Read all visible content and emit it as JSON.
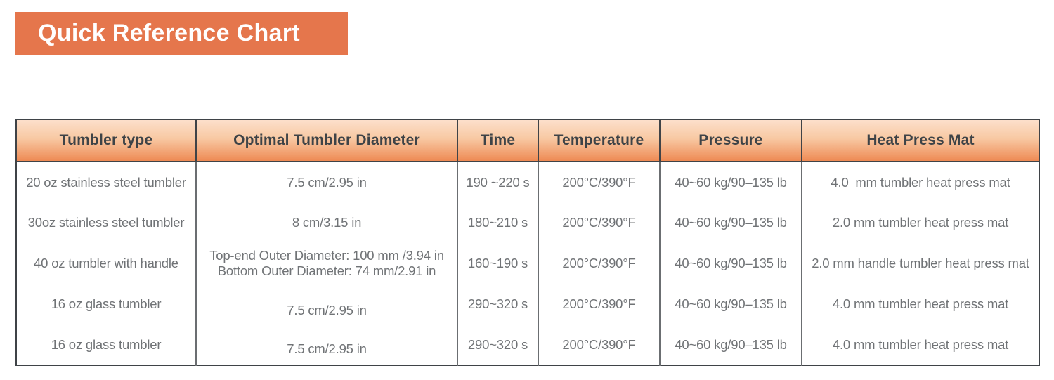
{
  "page": {
    "title": "Quick Reference Chart"
  },
  "colors": {
    "banner_orange": "#E5764C",
    "header_grad_top": "#FCDFCB",
    "header_grad_mid": "#F8C9A3",
    "header_grad_bottom": "#EE8A54",
    "border_dark": "#3F4347",
    "border_mid": "#6B6E71",
    "header_text": "#3E4347",
    "body_text": "#707376"
  },
  "table": {
    "columns": [
      "Tumbler type",
      "Optimal Tumbler Diameter",
      "Time",
      "Temperature",
      "Pressure",
      "Heat Press Mat"
    ],
    "rows": [
      [
        "20 oz stainless steel tumbler",
        "7.5 cm/2.95 in",
        "190 ~220 s",
        "200°C/390°F",
        "40~60 kg/90–135 lb",
        "4.0  mm tumbler heat press mat"
      ],
      [
        "30oz stainless steel tumbler",
        "8 cm/3.15 in",
        "180~210 s",
        "200°C/390°F",
        "40~60 kg/90–135 lb",
        "2.0 mm tumbler heat press mat"
      ],
      [
        "40 oz tumbler with handle",
        "Top-end Outer Diameter: 100 mm /3.94 in\nBottom Outer Diameter: 74 mm/2.91 in",
        "160~190 s",
        "200°C/390°F",
        "40~60 kg/90–135 lb",
        "2.0 mm handle tumbler heat press mat"
      ],
      [
        "16 oz glass tumbler",
        "7.5 cm/2.95 in",
        "290~320 s",
        "200°C/390°F",
        "40~60 kg/90–135 lb",
        "4.0 mm tumbler heat press mat"
      ],
      [
        "16 oz glass tumbler",
        "7.5 cm/2.95 in",
        "290~320 s",
        "200°C/390°F",
        "40~60 kg/90–135 lb",
        "4.0 mm tumbler heat press mat"
      ]
    ]
  }
}
